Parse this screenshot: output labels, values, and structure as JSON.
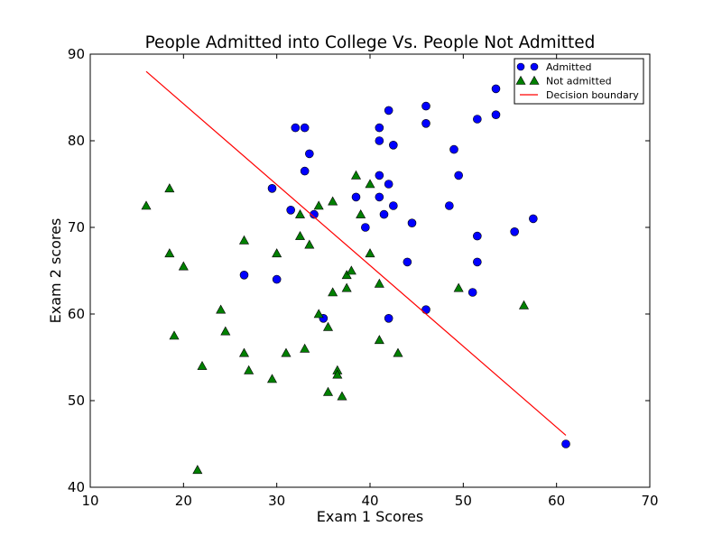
{
  "chart_data": {
    "type": "scatter",
    "title": "People Admitted into College Vs. People Not Admitted",
    "xlabel": "Exam 1 Scores",
    "ylabel": "Exam 2 scores",
    "xlim": [
      10,
      70
    ],
    "ylim": [
      40,
      90
    ],
    "xticks": [
      "10",
      "20",
      "30",
      "40",
      "50",
      "60",
      "70"
    ],
    "yticks": [
      "40",
      "50",
      "60",
      "70",
      "80",
      "90"
    ],
    "grid": false,
    "legend_position": "top-right",
    "series": [
      {
        "name": "Admitted",
        "kind": "scatter",
        "marker": "circle",
        "color": "#0000ff",
        "points": [
          [
            29.5,
            74.5
          ],
          [
            26.5,
            64.5
          ],
          [
            30.0,
            64.0
          ],
          [
            31.5,
            72.0
          ],
          [
            32.0,
            81.5
          ],
          [
            33.0,
            81.5
          ],
          [
            33.0,
            76.5
          ],
          [
            33.5,
            78.5
          ],
          [
            34.0,
            71.5
          ],
          [
            35.0,
            59.5
          ],
          [
            38.5,
            73.5
          ],
          [
            39.5,
            70.0
          ],
          [
            41.0,
            81.5
          ],
          [
            41.0,
            80.0
          ],
          [
            41.0,
            76.0
          ],
          [
            41.0,
            73.5
          ],
          [
            41.5,
            71.5
          ],
          [
            42.0,
            83.5
          ],
          [
            42.0,
            75.0
          ],
          [
            42.0,
            59.5
          ],
          [
            42.5,
            79.5
          ],
          [
            42.5,
            72.5
          ],
          [
            44.0,
            66.0
          ],
          [
            44.5,
            70.5
          ],
          [
            46.0,
            84.0
          ],
          [
            46.0,
            82.0
          ],
          [
            46.0,
            60.5
          ],
          [
            48.5,
            72.5
          ],
          [
            49.0,
            79.0
          ],
          [
            49.5,
            76.0
          ],
          [
            51.0,
            62.5
          ],
          [
            51.5,
            82.5
          ],
          [
            51.5,
            69.0
          ],
          [
            51.5,
            66.0
          ],
          [
            53.5,
            86.0
          ],
          [
            53.5,
            83.0
          ],
          [
            55.5,
            69.5
          ],
          [
            57.5,
            71.0
          ],
          [
            61.0,
            45.0
          ]
        ]
      },
      {
        "name": "Not admitted",
        "kind": "scatter",
        "marker": "triangle",
        "color": "#008000",
        "points": [
          [
            16.0,
            72.5
          ],
          [
            18.5,
            74.5
          ],
          [
            18.5,
            67.0
          ],
          [
            19.0,
            57.5
          ],
          [
            20.0,
            65.5
          ],
          [
            21.5,
            42.0
          ],
          [
            22.0,
            54.0
          ],
          [
            24.0,
            60.5
          ],
          [
            24.5,
            58.0
          ],
          [
            26.5,
            68.5
          ],
          [
            26.5,
            55.5
          ],
          [
            27.0,
            53.5
          ],
          [
            29.5,
            52.5
          ],
          [
            30.0,
            67.0
          ],
          [
            31.0,
            55.5
          ],
          [
            32.5,
            71.5
          ],
          [
            32.5,
            69.0
          ],
          [
            33.0,
            56.0
          ],
          [
            33.5,
            68.0
          ],
          [
            34.5,
            72.5
          ],
          [
            34.5,
            60.0
          ],
          [
            35.5,
            58.5
          ],
          [
            35.5,
            51.0
          ],
          [
            36.0,
            73.0
          ],
          [
            36.0,
            62.5
          ],
          [
            36.5,
            53.5
          ],
          [
            36.5,
            53.0
          ],
          [
            37.0,
            50.5
          ],
          [
            37.5,
            64.5
          ],
          [
            37.5,
            63.0
          ],
          [
            38.0,
            65.0
          ],
          [
            38.5,
            76.0
          ],
          [
            39.0,
            71.5
          ],
          [
            40.0,
            75.0
          ],
          [
            40.0,
            67.0
          ],
          [
            41.0,
            63.5
          ],
          [
            41.0,
            57.0
          ],
          [
            43.0,
            55.5
          ],
          [
            49.5,
            63.0
          ],
          [
            56.5,
            61.0
          ]
        ]
      },
      {
        "name": "Decision boundary",
        "kind": "line",
        "color": "#ff0000",
        "points": [
          [
            16.0,
            88.0
          ],
          [
            61.0,
            46.0
          ]
        ]
      }
    ]
  }
}
